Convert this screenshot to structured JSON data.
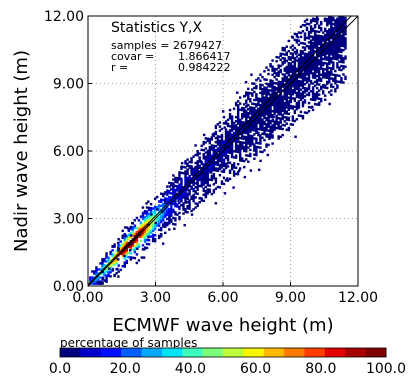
{
  "chart_data": {
    "type": "heatmap",
    "title": "",
    "xlabel": "ECMWF wave height (m)",
    "ylabel": "Nadir wave height (m)",
    "xlim": [
      0,
      12
    ],
    "ylim": [
      0,
      12
    ],
    "x_ticks": [
      "0.00",
      "3.00",
      "6.00",
      "9.00",
      "12.00"
    ],
    "y_ticks": [
      "0.00",
      "3.00",
      "6.00",
      "9.00",
      "12.00"
    ],
    "grid": true,
    "statistics": {
      "title": "Statistics Y,X",
      "rows": [
        {
          "label": "samples =",
          "value": "2679427"
        },
        {
          "label": "covar =",
          "value": "1.866417"
        },
        {
          "label": "r =",
          "value": "0.984222"
        }
      ]
    },
    "reference_lines": [
      "1:1 line",
      "regression line"
    ],
    "colorbar": {
      "title": "percentage of samples",
      "ticks": [
        "0.0",
        "20.0",
        "40.0",
        "60.0",
        "80.0",
        "100.0"
      ],
      "range": [
        0,
        100
      ],
      "colors": [
        "#00007f",
        "#0000c8",
        "#0010ff",
        "#0060ff",
        "#00a8ff",
        "#00e4f8",
        "#3cffbc",
        "#7cff7a",
        "#bcff3a",
        "#f8f500",
        "#ffb900",
        "#ff7a00",
        "#ff3c00",
        "#e40000",
        "#a80000",
        "#7f0000"
      ]
    },
    "density_ridge": [
      {
        "x": 0.3,
        "y": 0.3
      },
      {
        "x": 0.8,
        "y": 0.8
      },
      {
        "x": 1.3,
        "y": 1.3
      },
      {
        "x": 1.8,
        "y": 1.8
      },
      {
        "x": 2.3,
        "y": 2.3
      },
      {
        "x": 3.0,
        "y": 3.0
      },
      {
        "x": 4.0,
        "y": 4.0
      },
      {
        "x": 5.0,
        "y": 5.0
      },
      {
        "x": 6.0,
        "y": 6.0
      },
      {
        "x": 7.0,
        "y": 7.0
      },
      {
        "x": 8.0,
        "y": 8.0
      },
      {
        "x": 9.0,
        "y": 9.0
      },
      {
        "x": 10.0,
        "y": 10.0
      },
      {
        "x": 10.5,
        "y": 10.5
      }
    ]
  }
}
